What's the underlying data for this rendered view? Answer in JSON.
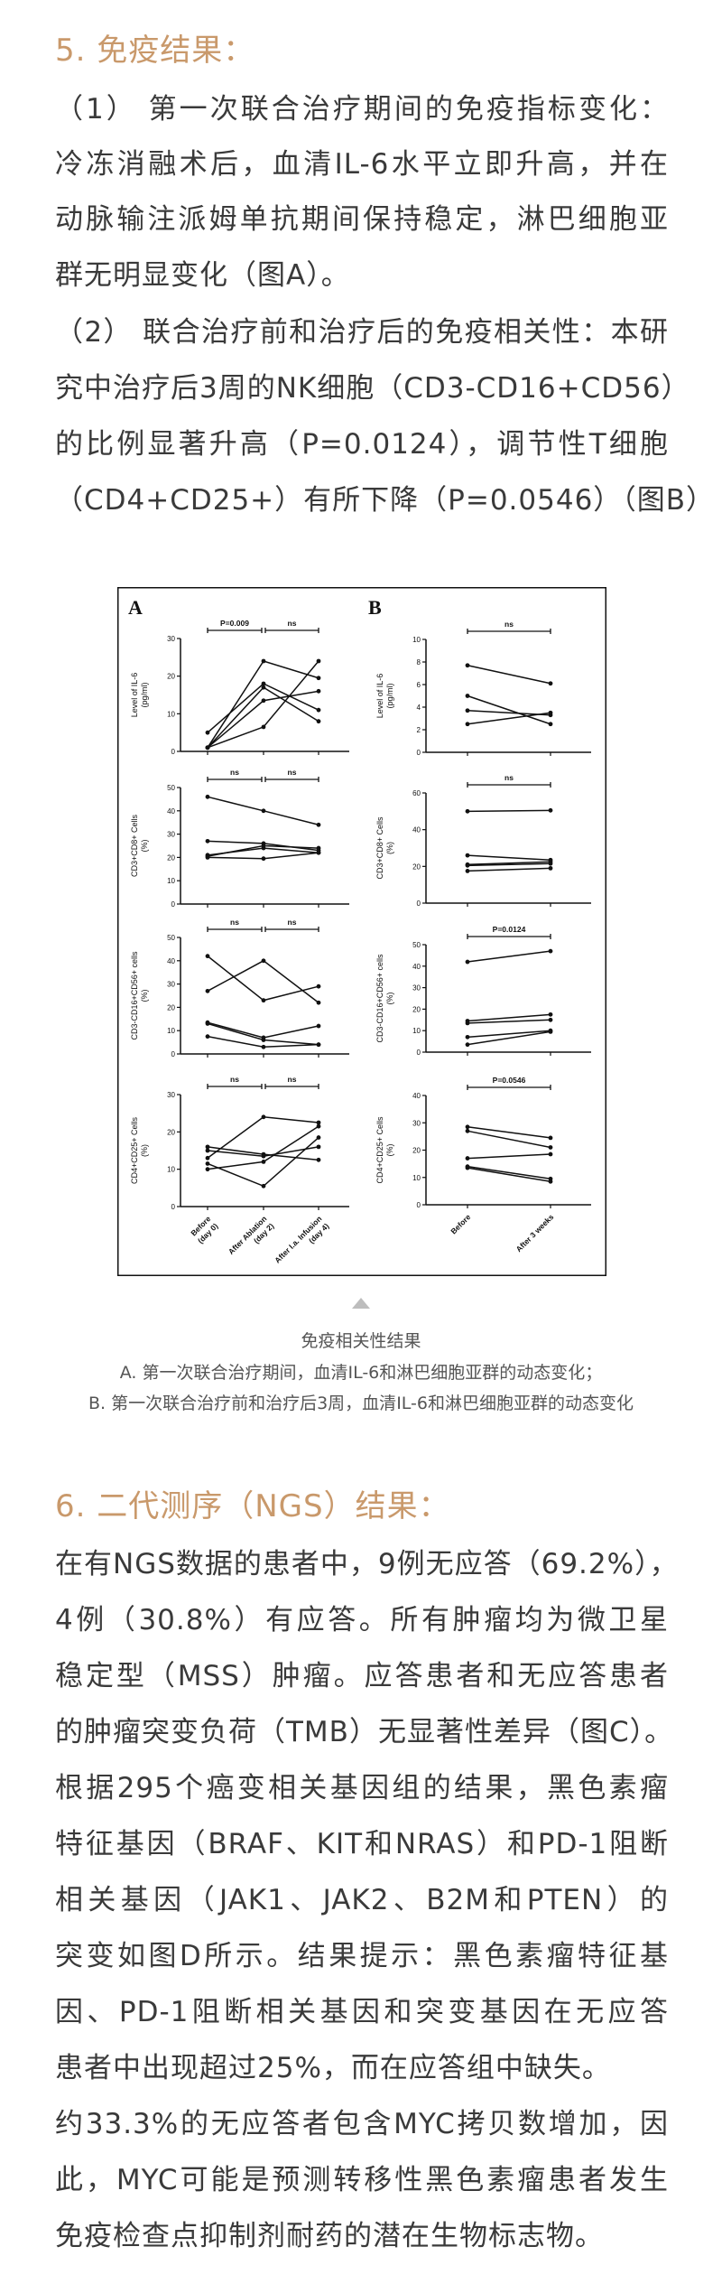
{
  "section5": {
    "heading": "5. 免疫结果：",
    "lines": [
      "（1）  第一次联合治疗期间的免疫指标变化：",
      "冷冻消融术后，血清IL-6水平立即升高，并在",
      "动脉输注派姆单抗期间保持稳定，淋巴细胞亚",
      "群无明显变化（图A）。",
      "（2） 联合治疗前和治疗后的免疫相关性：本研",
      "究中治疗后3周的NK细胞（CD3-CD16+CD56）",
      "的比例显著升高（P=0.0124），调节性T细胞",
      "（CD4+CD25+）有所下降（P=0.0546）（图B）"
    ]
  },
  "figure": {
    "caption_title": "免疫相关性结果",
    "caption_a": "A. 第一次联合治疗期间，血清IL-6和淋巴细胞亚群的动态变化；",
    "caption_b": "B. 第一次联合治疗前和治疗后3周，血清IL-6和淋巴细胞亚群的动态变化",
    "triangle_color": "#bdbdbd"
  },
  "chart_data": {
    "type": "line",
    "panels": [
      {
        "label": "A",
        "x_categories": [
          [
            "Before",
            "(day 0)"
          ],
          [
            "After Ablation",
            "(day 2)"
          ],
          [
            "After I.a. Infusion",
            "(day 4)"
          ]
        ],
        "subplots": [
          {
            "ylabel": [
              "Level of IL-6",
              "(pg/ml)"
            ],
            "ylim": [
              0,
              30
            ],
            "yticks": [
              0,
              10,
              20,
              30
            ],
            "comparisons": [
              "P=0.009",
              "ns"
            ],
            "series": [
              [
                1,
                24,
                19.5
              ],
              [
                5,
                18,
                11
              ],
              [
                1,
                17,
                8
              ],
              [
                1,
                13.5,
                16
              ],
              [
                1,
                6.5,
                24
              ]
            ]
          },
          {
            "ylabel": [
              "CD3+CD8+ Cells",
              "(%)"
            ],
            "ylim": [
              0,
              50
            ],
            "yticks": [
              0,
              10,
              20,
              30,
              40,
              50
            ],
            "comparisons": [
              "ns",
              "ns"
            ],
            "series": [
              [
                46,
                40,
                34
              ],
              [
                27,
                26,
                23
              ],
              [
                21,
                24,
                22
              ],
              [
                20.5,
                25,
                24
              ],
              [
                20,
                19.5,
                22
              ]
            ]
          },
          {
            "ylabel": [
              "CD3-CD16+CD56+ cells",
              "(%)"
            ],
            "ylim": [
              0,
              50
            ],
            "yticks": [
              0,
              10,
              20,
              30,
              40,
              50
            ],
            "comparisons": [
              "ns",
              "ns"
            ],
            "series": [
              [
                42,
                23,
                29
              ],
              [
                27,
                40,
                22
              ],
              [
                13.5,
                7,
                12
              ],
              [
                13,
                6,
                4
              ],
              [
                7.5,
                3,
                4
              ]
            ]
          },
          {
            "ylabel": [
              "CD4+CD25+ Cells",
              "(%)"
            ],
            "ylim": [
              0,
              30
            ],
            "yticks": [
              0,
              10,
              20,
              30
            ],
            "comparisons": [
              "ns",
              "ns"
            ],
            "series": [
              [
                16,
                14,
                12.5
              ],
              [
                15,
                13.5,
                16
              ],
              [
                13,
                24,
                22.5
              ],
              [
                11.5,
                5.5,
                18.5
              ],
              [
                10,
                12,
                21.5
              ]
            ]
          }
        ]
      },
      {
        "label": "B",
        "x_categories": [
          [
            "Before"
          ],
          [
            "After 3 weeks"
          ]
        ],
        "subplots": [
          {
            "ylabel": [
              "Level of IL-6",
              "(pg/ml)"
            ],
            "ylim": [
              0,
              10
            ],
            "yticks": [
              0,
              2,
              4,
              6,
              8,
              10
            ],
            "comparisons": [
              "ns"
            ],
            "series": [
              [
                7.7,
                6.1
              ],
              [
                5,
                2.5
              ],
              [
                3.7,
                3.3
              ],
              [
                2.5,
                3.5
              ]
            ]
          },
          {
            "ylabel": [
              "CD3+CD8+ Cells",
              "(%)"
            ],
            "ylim": [
              0,
              60
            ],
            "yticks": [
              0,
              20,
              40,
              60
            ],
            "comparisons": [
              "ns"
            ],
            "series": [
              [
                50,
                50.5
              ],
              [
                26,
                23.5
              ],
              [
                21,
                22.5
              ],
              [
                20.5,
                21.5
              ],
              [
                17.5,
                19
              ]
            ]
          },
          {
            "ylabel": [
              "CD3-CD16+CD56+ cells",
              "(%)"
            ],
            "ylim": [
              0,
              50
            ],
            "yticks": [
              0,
              10,
              20,
              30,
              40,
              50
            ],
            "comparisons": [
              "P=0.0124"
            ],
            "series": [
              [
                42,
                47
              ],
              [
                14.5,
                17.5
              ],
              [
                13.5,
                15
              ],
              [
                7,
                10
              ],
              [
                3.5,
                9.5
              ]
            ]
          },
          {
            "ylabel": [
              "CD4+CD25+ Cells",
              "(%)"
            ],
            "ylim": [
              0,
              40
            ],
            "yticks": [
              0,
              10,
              20,
              30,
              40
            ],
            "comparisons": [
              "P=0.0546"
            ],
            "series": [
              [
                28.5,
                24.5
              ],
              [
                27,
                21
              ],
              [
                17,
                18.5
              ],
              [
                14,
                9.5
              ],
              [
                13.5,
                8.5
              ]
            ]
          }
        ]
      }
    ]
  },
  "section6": {
    "heading": "6. 二代测序（NGS）结果：",
    "lines": [
      "在有NGS数据的患者中，9例无应答（69.2%），",
      "4例（30.8%）有应答。所有肿瘤均为微卫星",
      "稳定型（MSS）肿瘤。应答患者和无应答患者",
      "的肿瘤突变负荷（TMB）无显著性差异（图C）。",
      "根据295个癌变相关基因组的结果，黑色素瘤",
      "特征基因（BRAF、KIT和NRAS）和PD-1阻断",
      "相关基因（JAK1、JAK2、B2M和PTEN）的",
      "突变如图D所示。结果提示：黑色素瘤特征基",
      "因、PD-1阻断相关基因和突变基因在无应答",
      "患者中出现超过25%，而在应答组中缺失。",
      "约33.3%的无应答者包含MYC拷贝数增加，因",
      "此，MYC可能是预测转移性黑色素瘤患者发生",
      "免疫检查点抑制剂耐药的潜在生物标志物。"
    ]
  }
}
